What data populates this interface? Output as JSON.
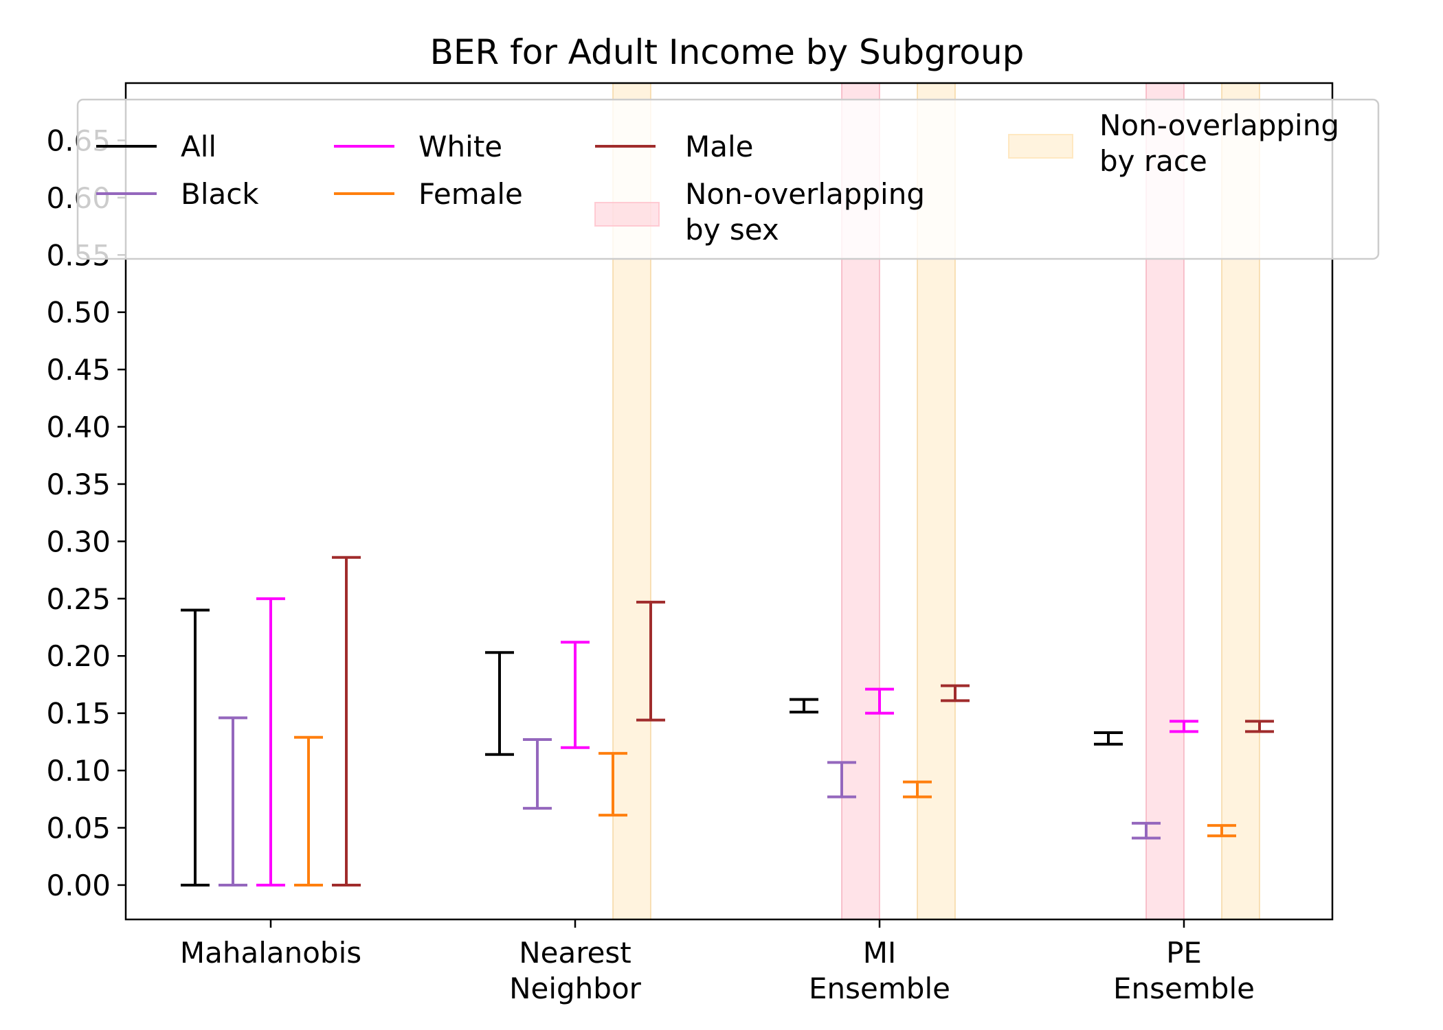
{
  "chart_data": {
    "type": "errorbar",
    "title": "BER for Adult Income by Subgroup",
    "xlabel": "",
    "ylabel": "",
    "ylim": [
      -0.03,
      0.7
    ],
    "yticks": [
      "0.00",
      "0.05",
      "0.10",
      "0.15",
      "0.20",
      "0.25",
      "0.30",
      "0.35",
      "0.40",
      "0.45",
      "0.50",
      "0.55",
      "0.60",
      "0.65"
    ],
    "categories": [
      {
        "lines": [
          "Mahalanobis"
        ]
      },
      {
        "lines": [
          "Nearest",
          "Neighbor"
        ]
      },
      {
        "lines": [
          "MI",
          "Ensemble"
        ]
      },
      {
        "lines": [
          "PE",
          "Ensemble"
        ]
      }
    ],
    "series": [
      {
        "name": "All",
        "color": "#000000",
        "ranges": [
          [
            0.0,
            0.24
          ],
          [
            0.114,
            0.203
          ],
          [
            0.151,
            0.162
          ],
          [
            0.123,
            0.133
          ]
        ]
      },
      {
        "name": "Black",
        "color": "#9467bd",
        "ranges": [
          [
            0.0,
            0.146
          ],
          [
            0.067,
            0.127
          ],
          [
            0.077,
            0.107
          ],
          [
            0.041,
            0.054
          ]
        ]
      },
      {
        "name": "White",
        "color": "#ff00ff",
        "ranges": [
          [
            0.0,
            0.25
          ],
          [
            0.12,
            0.212
          ],
          [
            0.15,
            0.171
          ],
          [
            0.134,
            0.143
          ]
        ]
      },
      {
        "name": "Female",
        "color": "#ff7f0e",
        "ranges": [
          [
            0.0,
            0.129
          ],
          [
            0.061,
            0.115
          ],
          [
            0.077,
            0.09
          ],
          [
            0.043,
            0.052
          ]
        ]
      },
      {
        "name": "Male",
        "color": "#a02c2c",
        "ranges": [
          [
            0.0,
            0.286
          ],
          [
            0.144,
            0.247
          ],
          [
            0.161,
            0.174
          ],
          [
            0.134,
            0.143
          ]
        ]
      }
    ],
    "shaded_regions": [
      {
        "kind": "race",
        "category": 1,
        "between": [
          "Female",
          "Male"
        ]
      },
      {
        "kind": "sex",
        "category": 2,
        "between": [
          "Black",
          "White"
        ]
      },
      {
        "kind": "race",
        "category": 2,
        "between": [
          "Female",
          "Male"
        ]
      },
      {
        "kind": "sex",
        "category": 3,
        "between": [
          "Black",
          "White"
        ]
      },
      {
        "kind": "race",
        "category": 3,
        "between": [
          "Female",
          "Male"
        ]
      }
    ],
    "legend": {
      "placement": "top",
      "entries": [
        {
          "label": [
            "All"
          ],
          "type": "line",
          "color": "#000000"
        },
        {
          "label": [
            "Black"
          ],
          "type": "line",
          "color": "#9467bd"
        },
        {
          "label": [
            "White"
          ],
          "type": "line",
          "color": "#ff00ff"
        },
        {
          "label": [
            "Female"
          ],
          "type": "line",
          "color": "#ff7f0e"
        },
        {
          "label": [
            "Male"
          ],
          "type": "line",
          "color": "#a02c2c"
        },
        {
          "label": [
            "Non-overlapping",
            "by sex"
          ],
          "type": "patch",
          "color": "#ffc0cb"
        },
        {
          "label": [
            "Non-overlapping",
            "by race"
          ],
          "type": "patch",
          "color": "#ffe4b5"
        }
      ]
    },
    "grid": false
  }
}
